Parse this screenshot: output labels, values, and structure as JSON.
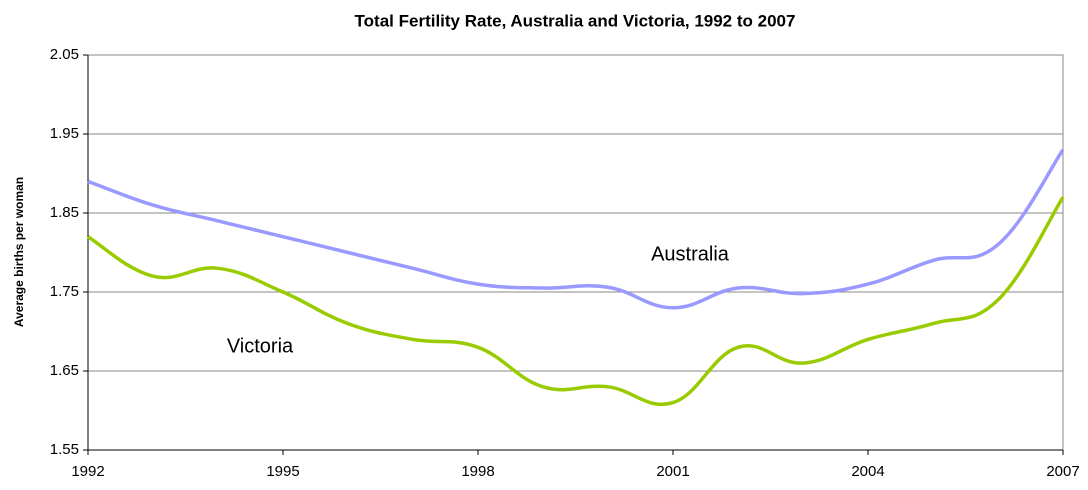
{
  "chart_data": {
    "type": "line",
    "title": "Total Fertility Rate, Australia and Victoria, 1992 to 2007",
    "y_label": "Average births per woman",
    "x": [
      1992,
      1993,
      1994,
      1995,
      1996,
      1997,
      1998,
      1999,
      2000,
      2001,
      2002,
      2003,
      2004,
      2005,
      2006,
      2007
    ],
    "series": [
      {
        "name": "Australia",
        "color": "#9999ff",
        "values": [
          1.89,
          1.86,
          1.84,
          1.82,
          1.8,
          1.78,
          1.76,
          1.755,
          1.756,
          1.73,
          1.755,
          1.748,
          1.76,
          1.79,
          1.81,
          1.93
        ]
      },
      {
        "name": "Victoria",
        "color": "#99cc00",
        "values": [
          1.82,
          1.77,
          1.78,
          1.75,
          1.71,
          1.69,
          1.68,
          1.63,
          1.63,
          1.61,
          1.68,
          1.66,
          1.69,
          1.71,
          1.74,
          1.87
        ]
      }
    ],
    "xlim": [
      1992,
      2007
    ],
    "xticks": [
      1992,
      1995,
      1998,
      2001,
      2004,
      2007
    ],
    "ylim": [
      1.55,
      2.05
    ],
    "yticks": [
      1.55,
      1.65,
      1.75,
      1.85,
      1.95,
      2.05
    ],
    "grid": true
  }
}
